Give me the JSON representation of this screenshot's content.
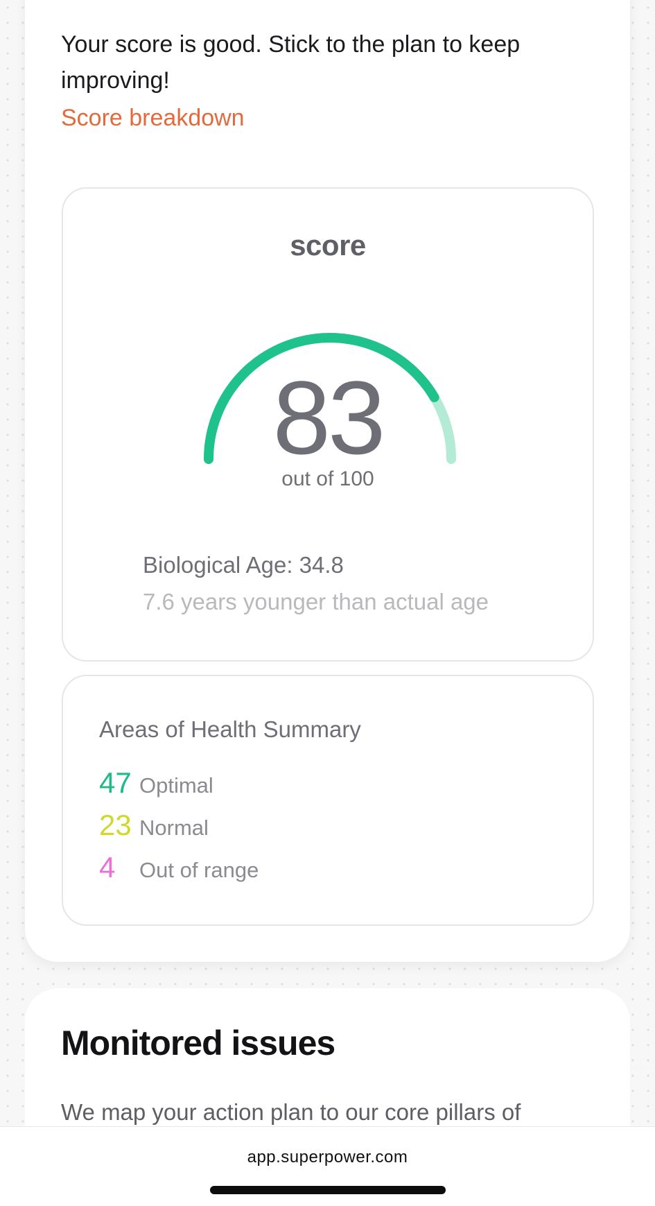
{
  "intro": {
    "message": "Your score is good. Stick to the plan to keep improving!",
    "breakdown_link": "Score breakdown"
  },
  "score_card": {
    "title": "score",
    "value": "83",
    "out_of": "out of 100",
    "gauge_fraction": 0.83,
    "gauge_color": "#1fc28b",
    "gauge_track_color": "#b4ebd6",
    "biological_age": "Biological Age: 34.8",
    "age_difference": "7.6 years younger than actual age"
  },
  "summary": {
    "title": "Areas of Health Summary",
    "rows": [
      {
        "count": "47",
        "label": "Optimal",
        "color": "#1fb98a"
      },
      {
        "count": "23",
        "label": "Normal",
        "color": "#cfd82c"
      },
      {
        "count": "4",
        "label": "Out of range",
        "color": "#ec6fd6"
      }
    ]
  },
  "monitored": {
    "title": "Monitored issues",
    "description": "We map your action plan to our core pillars of"
  },
  "browser": {
    "url": "app.superpower.com"
  }
}
